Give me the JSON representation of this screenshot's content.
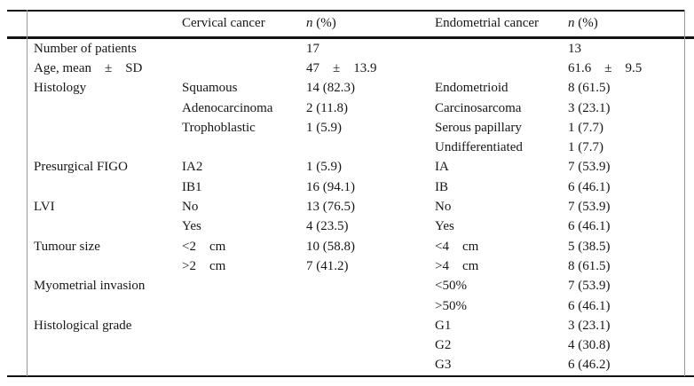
{
  "table": {
    "headers": {
      "row_label": "",
      "cervical": "Cervical cancer",
      "endometrial": "Endometrial cancer",
      "n_symbol": "n",
      "n_suffix": " (%)"
    },
    "rows": [
      {
        "label": "Number of patients",
        "cerv_cat": "",
        "cerv_n": "17",
        "endo_cat": "",
        "endo_n": "13"
      },
      {
        "label": "Age, mean    ±    SD",
        "cerv_cat": "",
        "cerv_n": "47    ±    13.9",
        "endo_cat": "",
        "endo_n": "61.6    ±    9.5"
      },
      {
        "label": "Histology",
        "cerv_cat": "Squamous",
        "cerv_n": "14 (82.3)",
        "endo_cat": "Endometrioid",
        "endo_n": "8 (61.5)"
      },
      {
        "label": "",
        "cerv_cat": "Adenocarcinoma",
        "cerv_n": "2 (11.8)",
        "endo_cat": "Carcinosarcoma",
        "endo_n": "3 (23.1)"
      },
      {
        "label": "",
        "cerv_cat": "Trophoblastic",
        "cerv_n": "1 (5.9)",
        "endo_cat": "Serous papillary",
        "endo_n": "1 (7.7)"
      },
      {
        "label": "",
        "cerv_cat": "",
        "cerv_n": "",
        "endo_cat": "Undifferentiated",
        "endo_n": "1 (7.7)"
      },
      {
        "label": "Presurgical FIGO",
        "cerv_cat": "IA2",
        "cerv_n": "1 (5.9)",
        "endo_cat": "IA",
        "endo_n": "7 (53.9)"
      },
      {
        "label": "",
        "cerv_cat": "IB1",
        "cerv_n": "16 (94.1)",
        "endo_cat": "IB",
        "endo_n": "6 (46.1)"
      },
      {
        "label": "LVI",
        "cerv_cat": "No",
        "cerv_n": "13 (76.5)",
        "endo_cat": "No",
        "endo_n": "7 (53.9)"
      },
      {
        "label": "",
        "cerv_cat": "Yes",
        "cerv_n": "4 (23.5)",
        "endo_cat": "Yes",
        "endo_n": "6 (46.1)"
      },
      {
        "label": "Tumour size",
        "cerv_cat": "<2    cm",
        "cerv_n": "10 (58.8)",
        "endo_cat": "<4    cm",
        "endo_n": "5 (38.5)"
      },
      {
        "label": "",
        "cerv_cat": ">2    cm",
        "cerv_n": "7 (41.2)",
        "endo_cat": ">4    cm",
        "endo_n": "8 (61.5)"
      },
      {
        "label": "Myometrial invasion",
        "cerv_cat": "",
        "cerv_n": "",
        "endo_cat": "<50%",
        "endo_n": "7 (53.9)"
      },
      {
        "label": "",
        "cerv_cat": "",
        "cerv_n": "",
        "endo_cat": ">50%",
        "endo_n": "6 (46.1)"
      },
      {
        "label": "Histological grade",
        "cerv_cat": "",
        "cerv_n": "",
        "endo_cat": "G1",
        "endo_n": "3 (23.1)"
      },
      {
        "label": "",
        "cerv_cat": "",
        "cerv_n": "",
        "endo_cat": "G2",
        "endo_n": "4 (30.8)"
      },
      {
        "label": "",
        "cerv_cat": "",
        "cerv_n": "",
        "endo_cat": "G3",
        "endo_n": "6 (46.2)"
      }
    ]
  }
}
